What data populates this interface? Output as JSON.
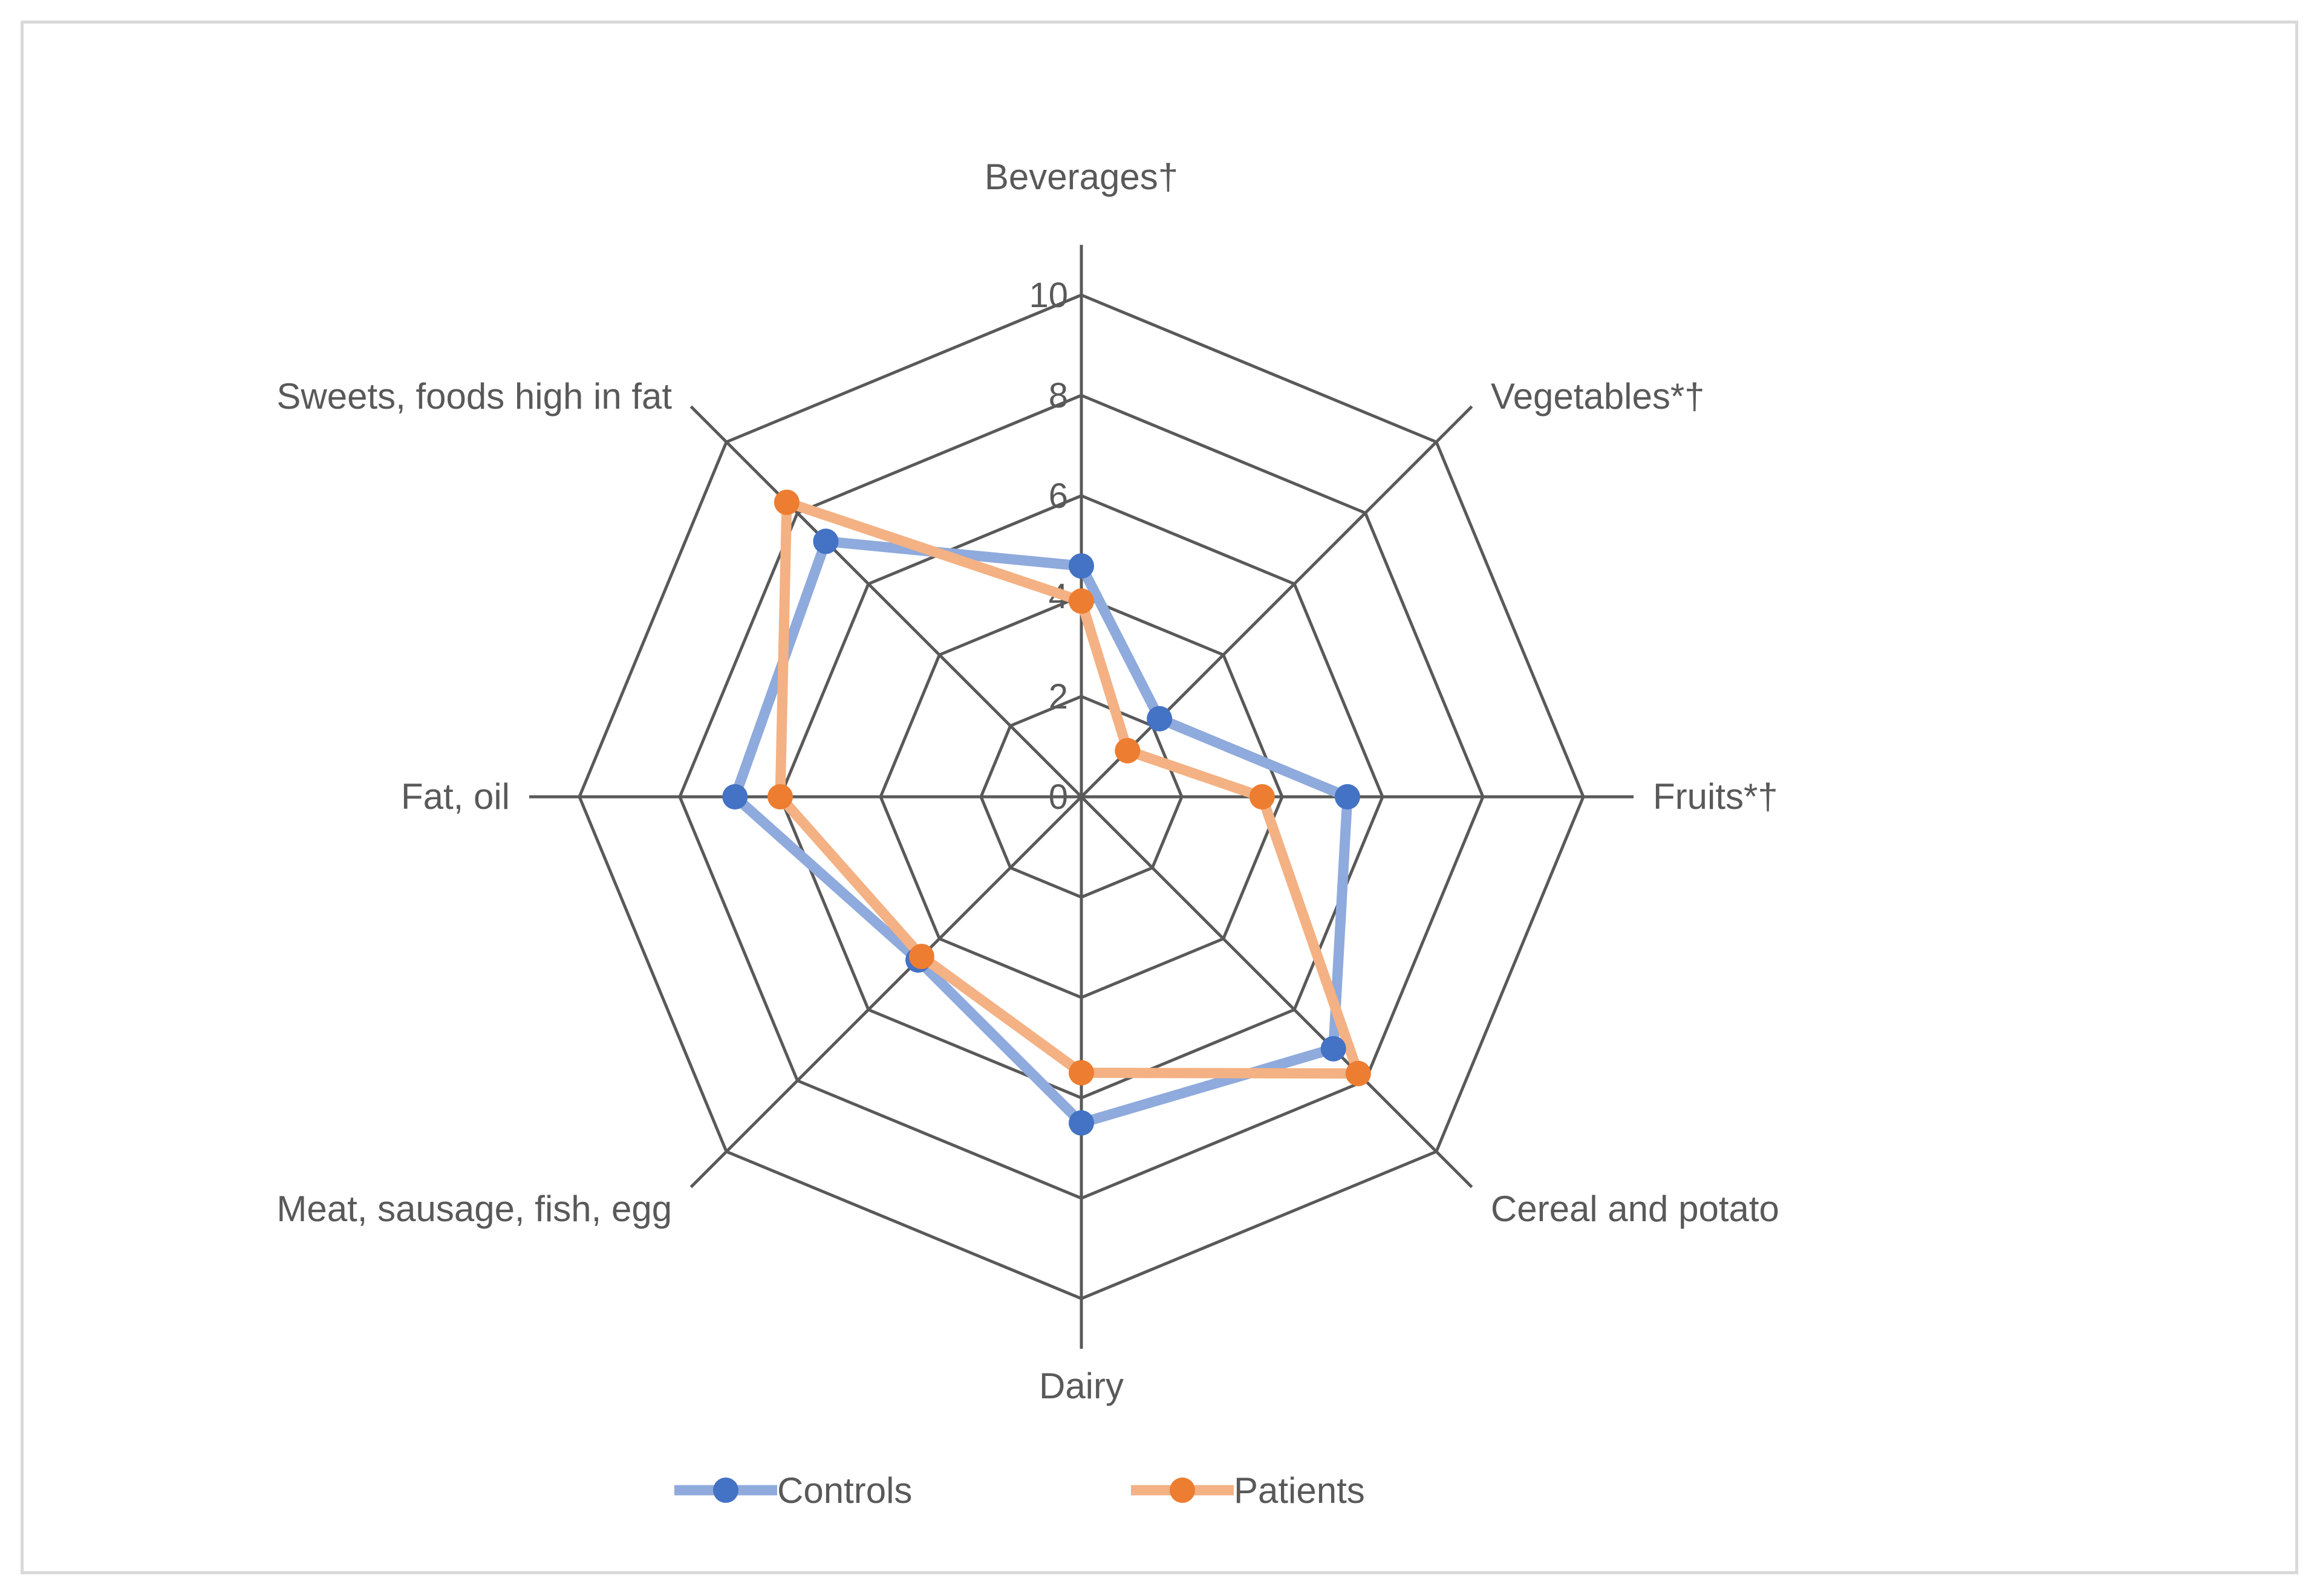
{
  "chart_data": {
    "type": "radar",
    "title": "",
    "categories": [
      "Beverages†",
      "Vegetables*†",
      "Fruits*†",
      "Cereal and potato",
      "Dairy",
      "Meat, sausage, fish, egg",
      "Fat, oil",
      "Sweets, foods high in fat"
    ],
    "rlim": [
      0,
      10
    ],
    "ticks": [
      "0",
      "2",
      "4",
      "6",
      "8",
      "10"
    ],
    "series": [
      {
        "name": "Controls",
        "color": "#4472c4",
        "line_color": "#8faadc",
        "values": [
          4.6,
          2.2,
          5.3,
          7.1,
          6.5,
          4.6,
          6.9,
          7.2
        ]
      },
      {
        "name": "Patients",
        "color": "#ed7d31",
        "line_color": "#f4b183",
        "values": [
          3.9,
          1.3,
          3.6,
          7.8,
          5.5,
          4.5,
          6.0,
          8.3
        ]
      }
    ],
    "legend_position": "bottom"
  }
}
